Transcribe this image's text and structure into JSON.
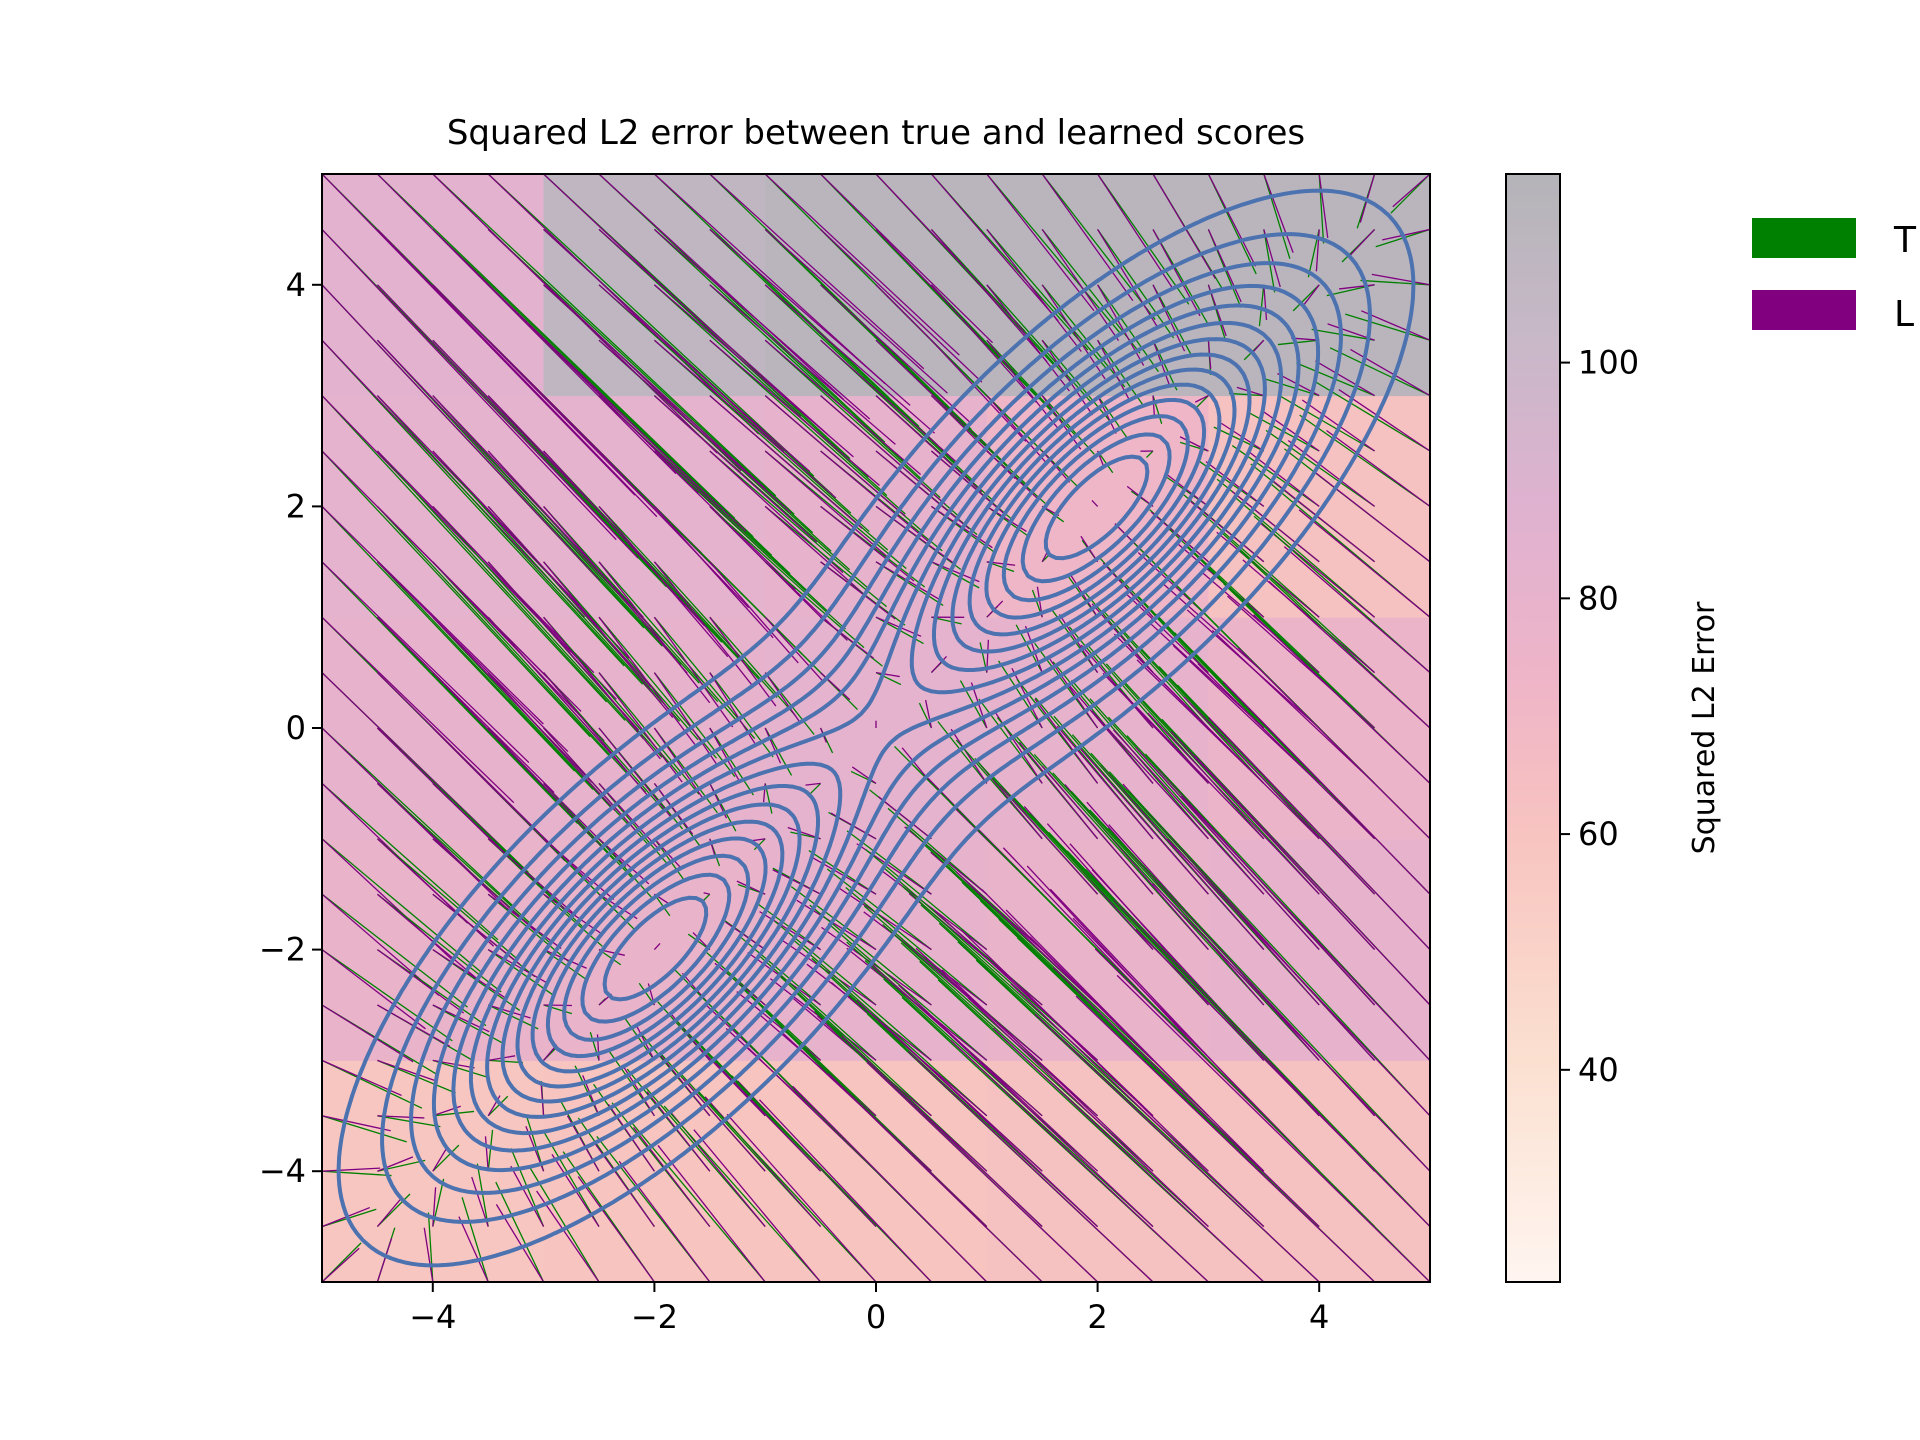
{
  "chart_data": {
    "type": "heatmap",
    "title": "Squared L2 error between true and learned scores",
    "xlabel": "",
    "ylabel": "",
    "xlim": [
      -5,
      5
    ],
    "ylim": [
      -5,
      5
    ],
    "x_ticks": [
      -4,
      -2,
      0,
      2,
      4
    ],
    "y_ticks": [
      -4,
      -2,
      0,
      2,
      4
    ],
    "x_tick_labels": [
      "−4",
      "−2",
      "0",
      "2",
      "4"
    ],
    "y_tick_labels": [
      "−4",
      "−2",
      "0",
      "2",
      "4"
    ],
    "heatmap": {
      "x_edges": [
        -5,
        -3,
        -1,
        1,
        3,
        5
      ],
      "y_edges": [
        -5,
        -3,
        -1,
        1,
        3,
        5
      ],
      "values_rows_bottom_to_top": [
        [
          58,
          60,
          60,
          62,
          62
        ],
        [
          78,
          78,
          80,
          78,
          80
        ],
        [
          80,
          80,
          82,
          80,
          76
        ],
        [
          82,
          82,
          80,
          72,
          62
        ],
        [
          85,
          108,
          112,
          112,
          112
        ]
      ],
      "colormap_label": "Squared L2 Error",
      "colorbar_range": [
        22,
        116
      ],
      "colorbar_ticks": [
        40,
        60,
        80,
        100
      ],
      "colorbar_tick_labels": [
        "40",
        "60",
        "80",
        "100"
      ],
      "overlay_alpha": 0.45
    },
    "density_contours": {
      "color": "#4c72b0",
      "components": [
        {
          "mean": [
            2,
            2
          ],
          "variance": 1.5,
          "covariance": 1.05
        },
        {
          "mean": [
            -2,
            -2
          ],
          "variance": 1.5,
          "covariance": 1.05
        }
      ],
      "levels": 14
    },
    "vector_fields": {
      "grid_step": 0.5,
      "true_color": "#008000",
      "learned_color": "#800080"
    },
    "legend": {
      "position": "outside-right",
      "entries": [
        {
          "label": "T",
          "color": "#008000"
        },
        {
          "label": "L",
          "color": "#800080"
        }
      ]
    }
  }
}
